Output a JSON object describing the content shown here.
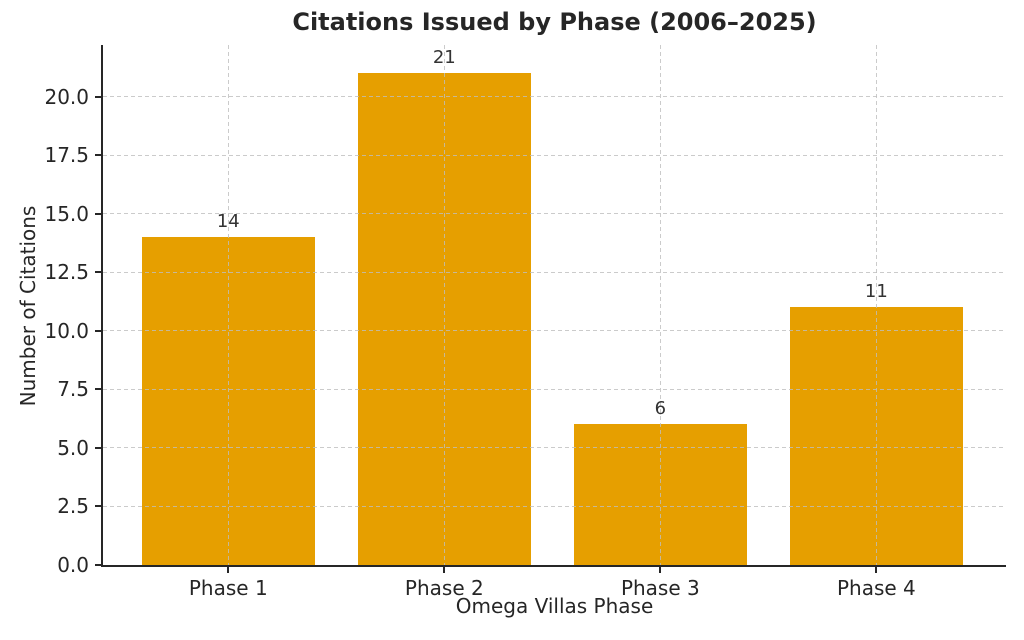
{
  "chart_data": {
    "type": "bar",
    "title": "Citations Issued by Phase (2006–2025)",
    "xlabel": "Omega Villas Phase",
    "ylabel": "Number of Citations",
    "categories": [
      "Phase 1",
      "Phase 2",
      "Phase 3",
      "Phase 4"
    ],
    "values": [
      14,
      21,
      6,
      11
    ],
    "value_labels": [
      "14",
      "21",
      "6",
      "11"
    ],
    "yticks": [
      0,
      2.5,
      5,
      7.5,
      10,
      12.5,
      15,
      17.5,
      20
    ],
    "ytick_labels": [
      "0.0",
      "2.5",
      "5.0",
      "7.5",
      "10.0",
      "12.5",
      "15.0",
      "17.5",
      "20.0"
    ],
    "ylim": [
      0,
      22.2
    ],
    "xlim": [
      -0.58,
      3.6
    ],
    "bar_width_fraction": 0.8,
    "grid": "both, dashed, drawn above bars",
    "legend": "none",
    "colors": {
      "bar": "#E69F00",
      "grid": "#c9c9c9",
      "spine": "#262626",
      "text": "#262626",
      "background": "#ffffff"
    }
  }
}
